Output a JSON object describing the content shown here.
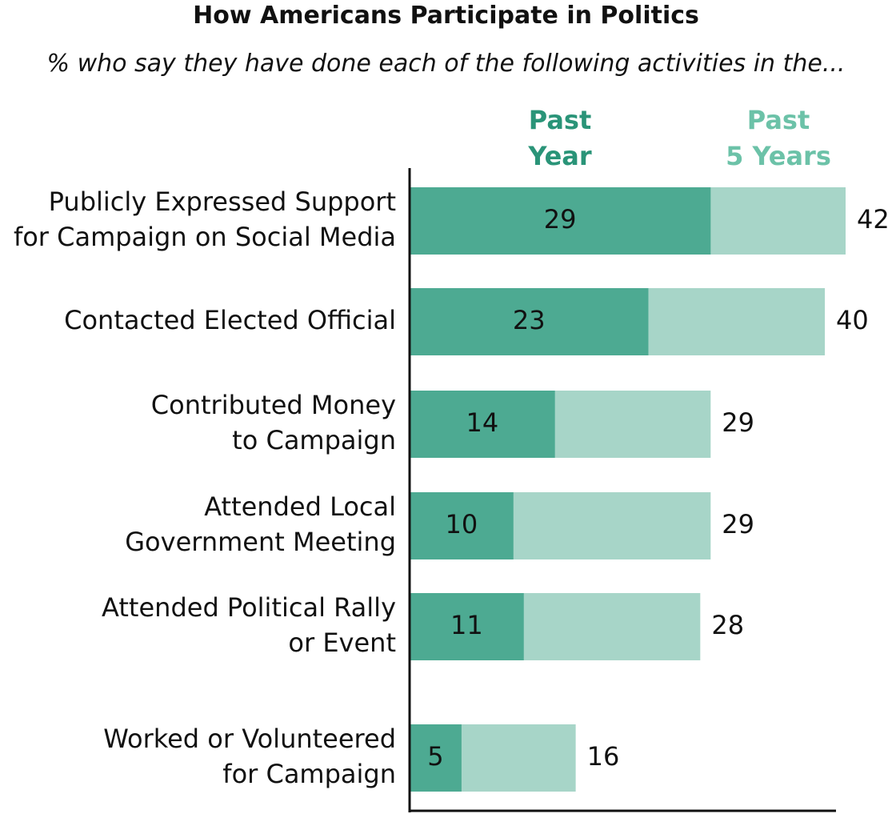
{
  "chart_data": {
    "type": "overlap-bar",
    "orientation": "horizontal",
    "title": "How Americans Participate in Politics",
    "subtitle": "% who say they have done each of the following activities in the...",
    "categories": [
      "Publicly Expressed Support\nfor Campaign on Social Media",
      "Contacted Elected Official",
      "Contributed Money\nto Campaign",
      "Attended Local\nGovernment Meeting",
      "Attended Political Rally\nor Event",
      "Worked or Volunteered\nfor Campaign"
    ],
    "series": [
      {
        "name": "Past\nYear",
        "color": "#4daa92",
        "label_color": "#2a9478",
        "values": [
          29,
          23,
          14,
          10,
          11,
          5
        ]
      },
      {
        "name": "Past\n5 Years",
        "color": "#a7d5c8",
        "label_color": "#6cc2a8",
        "values": [
          42,
          40,
          29,
          29,
          28,
          16
        ]
      }
    ]
  }
}
